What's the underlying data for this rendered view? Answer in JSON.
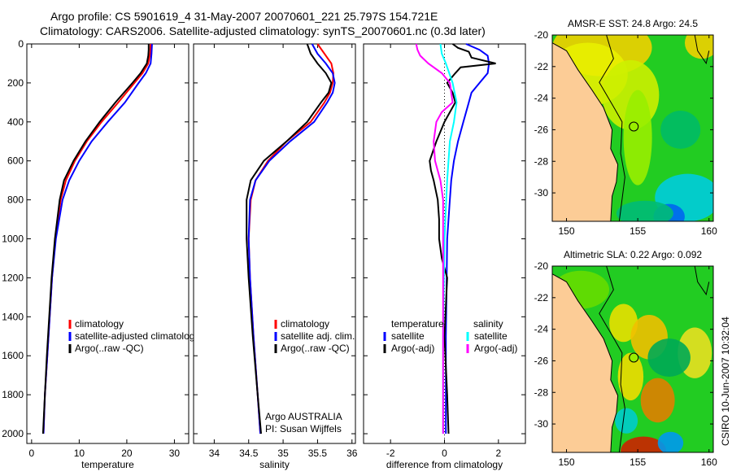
{
  "title": {
    "line1": "Argo profile: CS 5901619_4 31-May-2007 20070601_221 25.797S 154.721E",
    "line2": "Climatology: CARS2006. Satellite-adjusted climatology: synTS_20070601.nc (0.3d later)"
  },
  "colors": {
    "climatology": "#ff0000",
    "satellite": "#0000ff",
    "argo": "#000000",
    "sal_satellite": "#00ffff",
    "sal_argo": "#ff00ff",
    "land": "#fccc96"
  },
  "chart_data": [
    {
      "type": "line",
      "id": "temperature",
      "xlabel": "temperature",
      "ylabel": "depth",
      "xlim": [
        -1,
        33
      ],
      "ylim": [
        2050,
        0
      ],
      "xticks": [
        0,
        10,
        20,
        30
      ],
      "yticks": [
        0,
        200,
        400,
        600,
        800,
        1000,
        1200,
        1400,
        1600,
        1800,
        2000
      ],
      "legend": [
        "climatology",
        "satellite-adjusted climatology",
        "Argo(..raw -QC)"
      ],
      "series": [
        {
          "name": "climatology",
          "color": "#ff0000",
          "depth": [
            0,
            50,
            100,
            150,
            200,
            300,
            400,
            500,
            600,
            700,
            800,
            1000,
            1200,
            1400,
            1600,
            1800,
            2000
          ],
          "values": [
            25,
            24.9,
            24.5,
            23.3,
            21.6,
            18.2,
            14.7,
            11.6,
            9.1,
            7.2,
            6.1,
            5.0,
            4.3,
            3.8,
            3.3,
            2.8,
            2.5
          ]
        },
        {
          "name": "satellite-adjusted climatology",
          "color": "#0000ff",
          "depth": [
            0,
            50,
            100,
            150,
            200,
            300,
            400,
            500,
            600,
            700,
            800,
            1000,
            1200,
            1400,
            1600,
            1800,
            2000
          ],
          "values": [
            25.3,
            25.2,
            25.0,
            24.0,
            22.5,
            19.6,
            16.0,
            12.6,
            10.0,
            7.9,
            6.5,
            5.1,
            4.3,
            3.8,
            3.3,
            2.8,
            2.5
          ]
        },
        {
          "name": "Argo(..raw -QC)",
          "color": "#000000",
          "depth": [
            0,
            30,
            60,
            100,
            150,
            200,
            300,
            400,
            500,
            600,
            700,
            800,
            1000,
            1200,
            1400,
            1600,
            1800,
            2000
          ],
          "values": [
            24.6,
            24.6,
            24.5,
            24.2,
            22.9,
            21.2,
            17.6,
            14.3,
            11.3,
            8.8,
            6.8,
            5.9,
            4.9,
            4.2,
            3.7,
            3.2,
            2.8,
            2.4
          ]
        }
      ]
    },
    {
      "type": "line",
      "id": "salinity",
      "xlabel": "salinity",
      "xlim": [
        33.7,
        36.05
      ],
      "ylim": [
        2050,
        0
      ],
      "xticks": [
        34,
        34.5,
        35,
        35.5,
        36
      ],
      "legend": [
        "climatology",
        "satellite adj. clim.",
        "Argo(..raw -QC)"
      ],
      "annotation": [
        "Argo AUSTRALIA",
        "PI: Susan Wijffels"
      ],
      "series": [
        {
          "name": "climatology",
          "color": "#ff0000",
          "depth": [
            0,
            50,
            100,
            150,
            200,
            250,
            300,
            400,
            500,
            600,
            700,
            800,
            1000,
            1200,
            1500,
            1800,
            2000
          ],
          "values": [
            35.5,
            35.6,
            35.7,
            35.73,
            35.72,
            35.68,
            35.6,
            35.4,
            35.05,
            34.78,
            34.6,
            34.53,
            34.5,
            34.52,
            34.57,
            34.63,
            34.67
          ]
        },
        {
          "name": "satellite adj. clim.",
          "color": "#0000ff",
          "depth": [
            0,
            50,
            100,
            150,
            200,
            250,
            300,
            400,
            500,
            600,
            700,
            800,
            1000,
            1200,
            1500,
            1800,
            2000
          ],
          "values": [
            35.42,
            35.5,
            35.62,
            35.72,
            35.75,
            35.72,
            35.64,
            35.45,
            35.1,
            34.8,
            34.6,
            34.52,
            34.5,
            34.52,
            34.57,
            34.63,
            34.67
          ]
        },
        {
          "name": "Argo(..raw -QC)",
          "color": "#000000",
          "depth": [
            0,
            50,
            100,
            150,
            200,
            250,
            300,
            400,
            500,
            600,
            700,
            800,
            1000,
            1200,
            1500,
            1800,
            2000
          ],
          "values": [
            35.35,
            35.4,
            35.5,
            35.62,
            35.7,
            35.66,
            35.55,
            35.35,
            35.05,
            34.72,
            34.53,
            34.47,
            34.47,
            34.5,
            34.56,
            34.63,
            34.68
          ]
        }
      ]
    },
    {
      "type": "line",
      "id": "difference",
      "xlabel": "difference from climatology",
      "xlim": [
        -3,
        3
      ],
      "ylim": [
        2050,
        0
      ],
      "xticks": [
        -2,
        0,
        2
      ],
      "legend_titles": [
        "temperature",
        "salinity"
      ],
      "legend": [
        "satellite",
        "Argo(-adj)",
        "satellite",
        "Argo(-adj)"
      ],
      "series": [
        {
          "name": "temperature satellite",
          "color": "#0000ff",
          "depth": [
            0,
            30,
            60,
            100,
            150,
            200,
            250,
            300,
            400,
            500,
            600,
            700,
            800,
            1000,
            1200,
            1500,
            2000
          ],
          "values": [
            0.8,
            1.3,
            1.6,
            1.65,
            1.6,
            1.3,
            1.0,
            0.9,
            0.7,
            0.5,
            0.35,
            0.25,
            0.2,
            0.1,
            0.08,
            0.05,
            0.05
          ]
        },
        {
          "name": "temperature Argo(-adj)",
          "color": "#000000",
          "depth": [
            0,
            20,
            40,
            70,
            100,
            120,
            150,
            200,
            250,
            300,
            400,
            500,
            600,
            650,
            700,
            800,
            900,
            1000,
            1100,
            1200,
            1500,
            1800,
            2000
          ],
          "values": [
            0.3,
            0.5,
            0.9,
            1.0,
            1.9,
            0.6,
            0.4,
            0.1,
            0.3,
            0.4,
            0.0,
            -0.3,
            -0.55,
            -0.5,
            -0.4,
            -0.25,
            -0.2,
            -0.2,
            -0.1,
            0.1,
            0.0,
            0.1,
            0.15
          ]
        },
        {
          "name": "salinity satellite",
          "color": "#00ffff",
          "depth": [
            0,
            50,
            100,
            200,
            300,
            400,
            500,
            700,
            1000,
            1500,
            2000
          ],
          "values": [
            -0.15,
            -0.1,
            0.05,
            0.3,
            0.45,
            0.35,
            0.2,
            0.1,
            0.0,
            -0.05,
            -0.05
          ]
        },
        {
          "name": "salinity Argo(-adj)",
          "color": "#ff00ff",
          "depth": [
            0,
            30,
            60,
            100,
            150,
            200,
            300,
            350,
            400,
            500,
            600,
            700,
            800,
            1000,
            1500,
            2000
          ],
          "values": [
            -1.05,
            -1.0,
            -0.9,
            -0.6,
            -0.1,
            0.2,
            0.3,
            -0.1,
            -0.3,
            -0.4,
            -0.35,
            -0.15,
            -0.05,
            -0.05,
            -0.05,
            -0.05
          ]
        }
      ]
    },
    {
      "type": "heatmap",
      "id": "sst-map",
      "title": "AMSR-E SST: 24.8 Argo: 24.5",
      "xlim": [
        149,
        160.3
      ],
      "ylim": [
        -31.8,
        -20
      ],
      "xticks": [
        150,
        155,
        160
      ],
      "yticks": [
        -20,
        -22,
        -24,
        -26,
        -28,
        -30
      ],
      "marker": {
        "lon": 154.721,
        "lat": -25.797
      }
    },
    {
      "type": "heatmap",
      "id": "sla-map",
      "title": "Altimetric SLA: 0.22 Argo: 0.092",
      "xlim": [
        149,
        160.3
      ],
      "ylim": [
        -31.8,
        -20
      ],
      "xticks": [
        150,
        155,
        160
      ],
      "yticks": [
        -20,
        -22,
        -24,
        -26,
        -28,
        -30
      ],
      "marker": {
        "lon": 154.721,
        "lat": -25.797
      }
    }
  ],
  "footer": {
    "credit": "CSIRO 10-Jun-2007 10:32:04"
  }
}
